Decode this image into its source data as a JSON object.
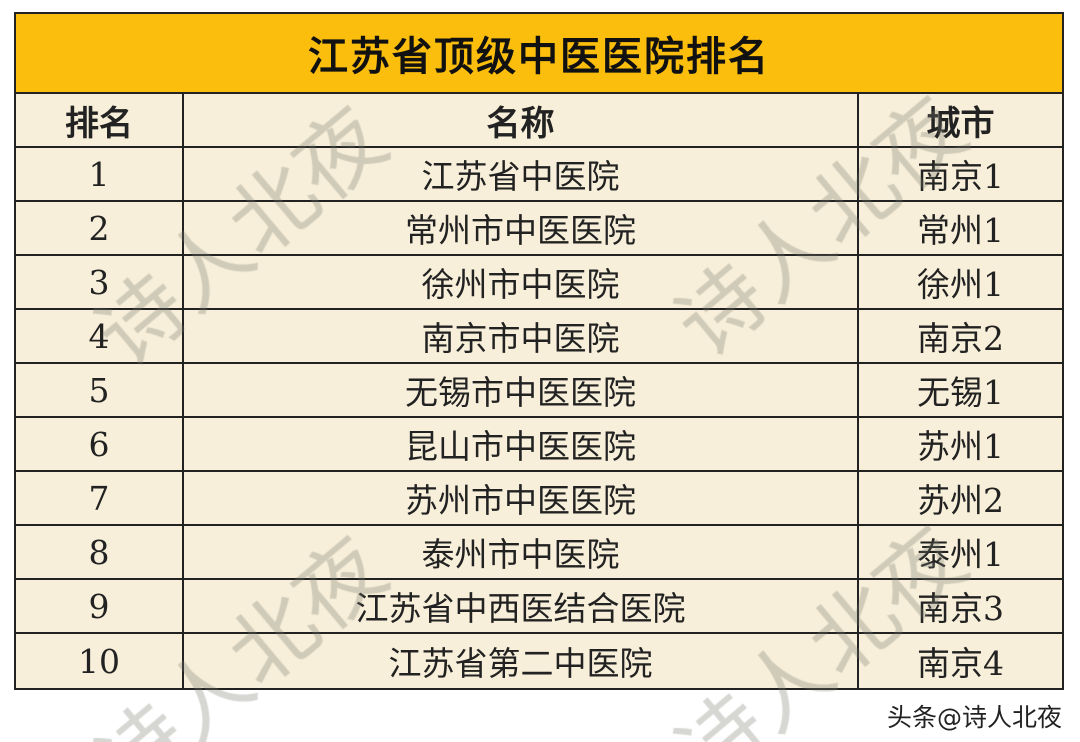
{
  "title": "江苏省顶级中医医院排名",
  "headers": {
    "rank": "排名",
    "name": "名称",
    "city": "城市"
  },
  "rows": [
    {
      "rank": "1",
      "name": "江苏省中医院",
      "city": "南京1"
    },
    {
      "rank": "2",
      "name": "常州市中医医院",
      "city": "常州1"
    },
    {
      "rank": "3",
      "name": "徐州市中医院",
      "city": "徐州1"
    },
    {
      "rank": "4",
      "name": "南京市中医院",
      "city": "南京2"
    },
    {
      "rank": "5",
      "name": "无锡市中医医院",
      "city": "无锡1"
    },
    {
      "rank": "6",
      "name": "昆山市中医医院",
      "city": "苏州1"
    },
    {
      "rank": "7",
      "name": "苏州市中医医院",
      "city": "苏州2"
    },
    {
      "rank": "8",
      "name": "泰州市中医院",
      "city": "泰州1"
    },
    {
      "rank": "9",
      "name": "江苏省中西医结合医院",
      "city": "南京3"
    },
    {
      "rank": "10",
      "name": "江苏省第二中医院",
      "city": "南京4"
    }
  ],
  "watermark": "诗人北夜",
  "credit": "头条@诗人北夜",
  "colors": {
    "title_bg": "#fbbe0d",
    "table_bg": "#f7efd9"
  }
}
